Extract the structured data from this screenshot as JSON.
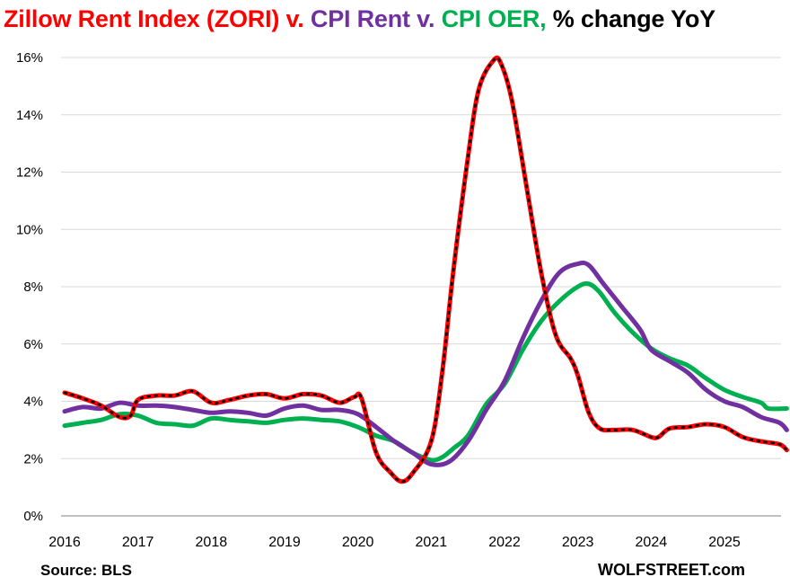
{
  "chart_data": {
    "type": "line",
    "title_parts": [
      {
        "text": "Zillow Rent Index (ZORI) v. ",
        "color": "#ff0000"
      },
      {
        "text": "CPI Rent v. ",
        "color": "#7030a0"
      },
      {
        "text": "CPI OER, ",
        "color": "#00b050"
      },
      {
        "text": "% change YoY",
        "color": "#000000"
      }
    ],
    "xlabel": "",
    "ylabel": "",
    "x_ticks": [
      "2016",
      "2017",
      "2018",
      "2019",
      "2020",
      "2021",
      "2022",
      "2023",
      "2024",
      "2025"
    ],
    "y_ticks": [
      "0%",
      "2%",
      "4%",
      "6%",
      "8%",
      "10%",
      "12%",
      "14%",
      "16%"
    ],
    "xlim": [
      2016.0,
      2025.85
    ],
    "ylim": [
      0,
      16
    ],
    "grid": true,
    "series": [
      {
        "name": "CPI OER",
        "color": "#00b050",
        "points": [
          [
            2016.0,
            3.15
          ],
          [
            2016.25,
            3.25
          ],
          [
            2016.5,
            3.35
          ],
          [
            2016.75,
            3.55
          ],
          [
            2017.0,
            3.5
          ],
          [
            2017.25,
            3.25
          ],
          [
            2017.5,
            3.2
          ],
          [
            2017.75,
            3.15
          ],
          [
            2018.0,
            3.4
          ],
          [
            2018.25,
            3.35
          ],
          [
            2018.5,
            3.3
          ],
          [
            2018.75,
            3.25
          ],
          [
            2019.0,
            3.35
          ],
          [
            2019.25,
            3.4
          ],
          [
            2019.5,
            3.35
          ],
          [
            2019.75,
            3.3
          ],
          [
            2020.0,
            3.1
          ],
          [
            2020.25,
            2.8
          ],
          [
            2020.5,
            2.6
          ],
          [
            2020.75,
            2.2
          ],
          [
            2021.0,
            1.95
          ],
          [
            2021.15,
            2.05
          ],
          [
            2021.3,
            2.35
          ],
          [
            2021.5,
            2.8
          ],
          [
            2021.75,
            3.9
          ],
          [
            2022.0,
            4.6
          ],
          [
            2022.25,
            5.8
          ],
          [
            2022.5,
            6.8
          ],
          [
            2022.75,
            7.5
          ],
          [
            2023.0,
            8.0
          ],
          [
            2023.15,
            8.1
          ],
          [
            2023.3,
            7.8
          ],
          [
            2023.5,
            7.1
          ],
          [
            2023.75,
            6.4
          ],
          [
            2024.0,
            5.85
          ],
          [
            2024.25,
            5.5
          ],
          [
            2024.5,
            5.25
          ],
          [
            2024.75,
            4.8
          ],
          [
            2025.0,
            4.4
          ],
          [
            2025.25,
            4.15
          ],
          [
            2025.5,
            3.95
          ],
          [
            2025.6,
            3.75
          ],
          [
            2025.85,
            3.75
          ]
        ]
      },
      {
        "name": "CPI Rent",
        "color": "#7030a0",
        "points": [
          [
            2016.0,
            3.65
          ],
          [
            2016.25,
            3.8
          ],
          [
            2016.5,
            3.75
          ],
          [
            2016.75,
            3.95
          ],
          [
            2017.0,
            3.85
          ],
          [
            2017.25,
            3.85
          ],
          [
            2017.5,
            3.8
          ],
          [
            2017.75,
            3.7
          ],
          [
            2018.0,
            3.6
          ],
          [
            2018.25,
            3.65
          ],
          [
            2018.5,
            3.6
          ],
          [
            2018.75,
            3.5
          ],
          [
            2019.0,
            3.75
          ],
          [
            2019.25,
            3.85
          ],
          [
            2019.5,
            3.7
          ],
          [
            2019.75,
            3.7
          ],
          [
            2020.0,
            3.55
          ],
          [
            2020.25,
            3.1
          ],
          [
            2020.5,
            2.6
          ],
          [
            2020.75,
            2.2
          ],
          [
            2021.0,
            1.8
          ],
          [
            2021.25,
            1.9
          ],
          [
            2021.5,
            2.6
          ],
          [
            2021.75,
            3.7
          ],
          [
            2022.0,
            4.7
          ],
          [
            2022.25,
            6.2
          ],
          [
            2022.5,
            7.5
          ],
          [
            2022.75,
            8.5
          ],
          [
            2023.0,
            8.8
          ],
          [
            2023.15,
            8.75
          ],
          [
            2023.35,
            8.1
          ],
          [
            2023.6,
            7.3
          ],
          [
            2023.85,
            6.5
          ],
          [
            2024.0,
            5.8
          ],
          [
            2024.25,
            5.4
          ],
          [
            2024.5,
            5.0
          ],
          [
            2024.75,
            4.4
          ],
          [
            2025.0,
            4.0
          ],
          [
            2025.25,
            3.8
          ],
          [
            2025.5,
            3.45
          ],
          [
            2025.75,
            3.25
          ],
          [
            2025.85,
            3.0
          ]
        ]
      },
      {
        "name": "Zillow Rent Index (ZORI)",
        "color": "#ff0000",
        "dotted": true,
        "points": [
          [
            2016.0,
            4.3
          ],
          [
            2016.25,
            4.1
          ],
          [
            2016.5,
            3.85
          ],
          [
            2016.75,
            3.45
          ],
          [
            2016.9,
            3.5
          ],
          [
            2017.0,
            4.05
          ],
          [
            2017.25,
            4.2
          ],
          [
            2017.5,
            4.2
          ],
          [
            2017.75,
            4.35
          ],
          [
            2018.0,
            3.95
          ],
          [
            2018.25,
            4.05
          ],
          [
            2018.5,
            4.2
          ],
          [
            2018.75,
            4.25
          ],
          [
            2019.0,
            4.1
          ],
          [
            2019.25,
            4.25
          ],
          [
            2019.5,
            4.2
          ],
          [
            2019.75,
            3.95
          ],
          [
            2019.95,
            4.15
          ],
          [
            2020.05,
            4.1
          ],
          [
            2020.25,
            2.2
          ],
          [
            2020.45,
            1.5
          ],
          [
            2020.6,
            1.2
          ],
          [
            2020.75,
            1.5
          ],
          [
            2021.0,
            2.6
          ],
          [
            2021.15,
            5.0
          ],
          [
            2021.3,
            8.5
          ],
          [
            2021.5,
            12.5
          ],
          [
            2021.65,
            14.9
          ],
          [
            2021.85,
            15.9
          ],
          [
            2021.95,
            15.8
          ],
          [
            2022.1,
            14.5
          ],
          [
            2022.3,
            11.5
          ],
          [
            2022.5,
            8.5
          ],
          [
            2022.7,
            6.3
          ],
          [
            2022.9,
            5.5
          ],
          [
            2023.0,
            4.9
          ],
          [
            2023.15,
            3.6
          ],
          [
            2023.3,
            3.05
          ],
          [
            2023.5,
            3.0
          ],
          [
            2023.75,
            3.0
          ],
          [
            2024.0,
            2.75
          ],
          [
            2024.1,
            2.75
          ],
          [
            2024.25,
            3.05
          ],
          [
            2024.5,
            3.1
          ],
          [
            2024.75,
            3.2
          ],
          [
            2025.0,
            3.1
          ],
          [
            2025.25,
            2.75
          ],
          [
            2025.5,
            2.6
          ],
          [
            2025.75,
            2.5
          ],
          [
            2025.85,
            2.3
          ]
        ]
      }
    ]
  },
  "footer": {
    "source": "Source: BLS",
    "brand": "WOLFSTREET.com"
  }
}
